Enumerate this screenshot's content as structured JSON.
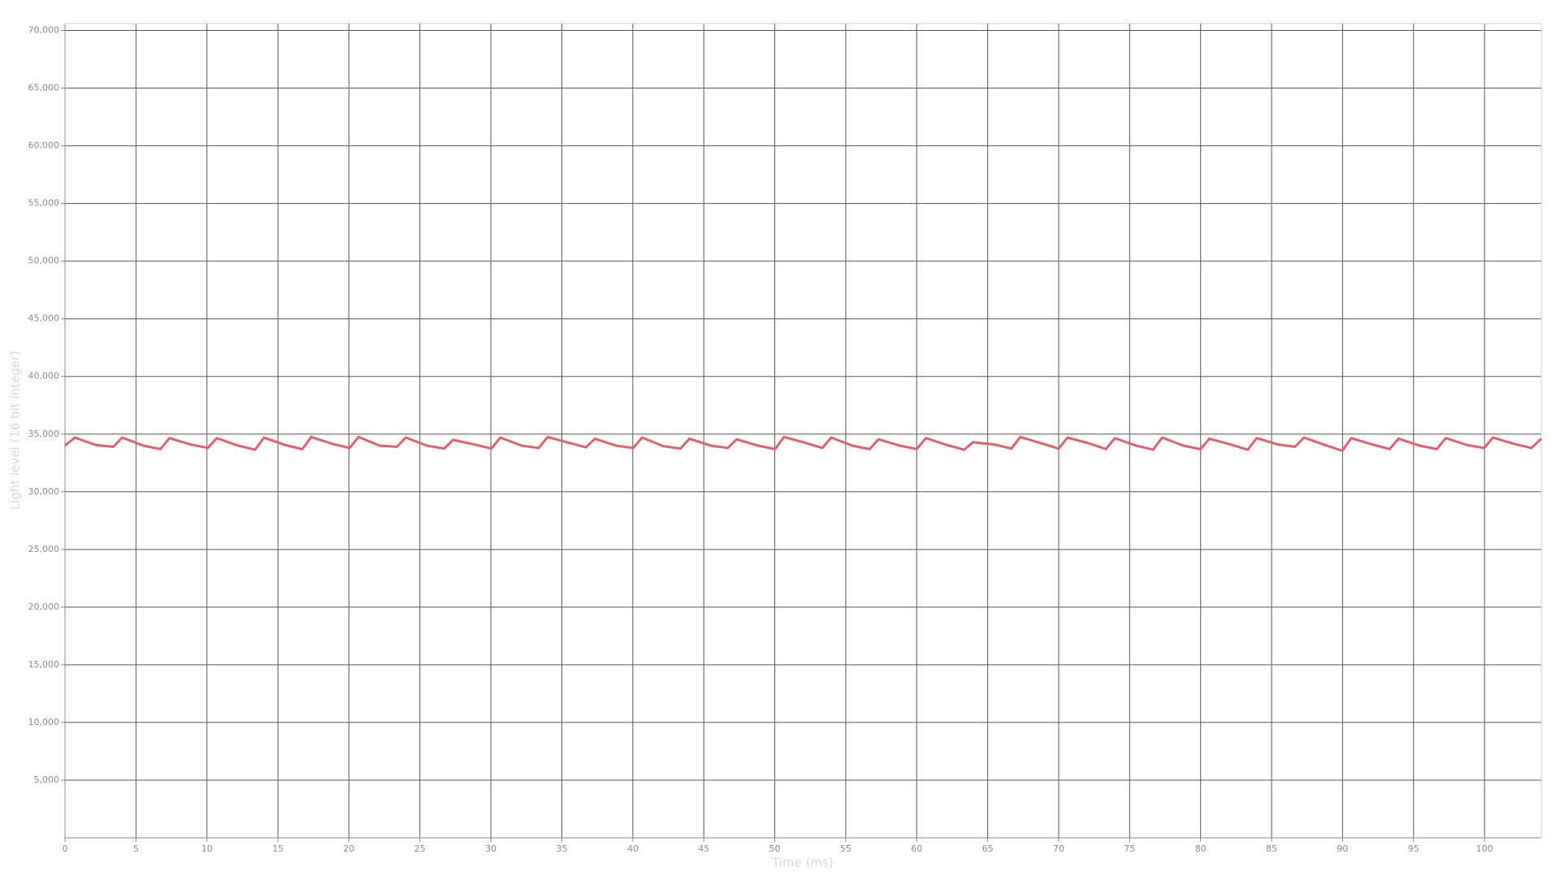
{
  "chart_data": {
    "type": "line",
    "x_label": "Time (ms)",
    "y_label": "Light level (16 bit integer)",
    "xlim": [
      0,
      104
    ],
    "ylim": [
      0,
      70600
    ],
    "xticks": [
      0,
      5,
      10,
      15,
      20,
      25,
      30,
      35,
      40,
      45,
      50,
      55,
      60,
      65,
      70,
      75,
      80,
      85,
      90,
      95,
      100
    ],
    "yticks": [
      {
        "value": 5000,
        "label": "5,000"
      },
      {
        "value": 10000,
        "label": "10,000"
      },
      {
        "value": 15000,
        "label": "15,000"
      },
      {
        "value": 20000,
        "label": "20,000"
      },
      {
        "value": 25000,
        "label": "25,000"
      },
      {
        "value": 30000,
        "label": "30,000"
      },
      {
        "value": 35000,
        "label": "35,000"
      },
      {
        "value": 40000,
        "label": "40,000"
      },
      {
        "value": 45000,
        "label": "45,000"
      },
      {
        "value": 50000,
        "label": "50,000"
      },
      {
        "value": 55000,
        "label": "55,000"
      },
      {
        "value": 60000,
        "label": "60,000"
      },
      {
        "value": 65000,
        "label": "65,000"
      },
      {
        "value": 70000,
        "label": "70,000"
      }
    ],
    "grid": true,
    "x": [
      0,
      0.7,
      2.2,
      3.4,
      4.03,
      5.53,
      6.73,
      7.36,
      8.86,
      10.06,
      10.69,
      12.19,
      13.39,
      14.02,
      15.52,
      16.72,
      17.35,
      18.85,
      20.05,
      20.68,
      22.18,
      23.38,
      24.01,
      25.51,
      26.71,
      27.34,
      28.84,
      30.04,
      30.67,
      32.17,
      33.37,
      34.0,
      35.5,
      36.7,
      37.33,
      38.83,
      40.03,
      40.66,
      42.16,
      43.36,
      43.99,
      45.49,
      46.69,
      47.32,
      48.82,
      50.02,
      50.65,
      52.15,
      53.35,
      53.98,
      55.48,
      56.68,
      57.31,
      58.81,
      60.01,
      60.64,
      62.14,
      63.34,
      63.97,
      65.47,
      66.67,
      67.3,
      68.8,
      70.0,
      70.63,
      72.13,
      73.33,
      73.96,
      75.46,
      76.66,
      77.29,
      78.79,
      79.99,
      80.62,
      82.12,
      83.32,
      83.95,
      85.45,
      86.65,
      87.28,
      88.78,
      89.98,
      90.61,
      92.11,
      93.31,
      93.94,
      95.44,
      96.64,
      97.27,
      98.77,
      99.97,
      100.6,
      102.1,
      103.3,
      104
    ],
    "series": [
      {
        "name": "Light level",
        "color": "#e0606e",
        "values": [
          34000,
          34700,
          34050,
          33900,
          34700,
          34000,
          33700,
          34650,
          34100,
          33800,
          34650,
          34000,
          33650,
          34700,
          34050,
          33700,
          34750,
          34150,
          33800,
          34750,
          34000,
          33900,
          34700,
          34000,
          33750,
          34500,
          34100,
          33750,
          34700,
          34000,
          33800,
          34750,
          34250,
          33850,
          34600,
          34000,
          33800,
          34700,
          33950,
          33750,
          34600,
          34000,
          33800,
          34550,
          34000,
          33700,
          34750,
          34250,
          33800,
          34700,
          34000,
          33700,
          34550,
          34000,
          33700,
          34650,
          34050,
          33650,
          34300,
          34100,
          33750,
          34750,
          34200,
          33750,
          34700,
          34200,
          33700,
          34650,
          34000,
          33650,
          34700,
          34000,
          33700,
          34600,
          34100,
          33650,
          34650,
          34100,
          33900,
          34700,
          34050,
          33550,
          34650,
          34100,
          33700,
          34600,
          34000,
          33700,
          34650,
          34050,
          33800,
          34700,
          34150,
          33800,
          34600
        ]
      }
    ]
  }
}
